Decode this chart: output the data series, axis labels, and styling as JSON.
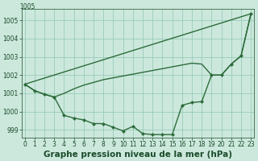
{
  "title": "Graphe pression niveau de la mer (hPa)",
  "background_color": "#cce8dc",
  "grid_color": "#99ccbb",
  "line_color": "#2d6b3c",
  "marker_color": "#2d6b3c",
  "xlim": [
    -0.3,
    23.3
  ],
  "ylim": [
    998.6,
    1005.6
  ],
  "yticks": [
    999,
    1000,
    1001,
    1002,
    1003,
    1004,
    1005
  ],
  "xticks": [
    0,
    1,
    2,
    3,
    4,
    5,
    6,
    7,
    8,
    9,
    10,
    11,
    12,
    13,
    14,
    15,
    16,
    17,
    18,
    19,
    20,
    21,
    22,
    23
  ],
  "series": [
    {
      "x": [
        0,
        23
      ],
      "y": [
        1001.5,
        1005.35
      ],
      "with_markers": false,
      "linewidth": 1.0
    },
    {
      "x": [
        0,
        1,
        2,
        3,
        4,
        5,
        6,
        7,
        8,
        9,
        10,
        11,
        12,
        13,
        14,
        15,
        16,
        17,
        18,
        19,
        20,
        21,
        22,
        23
      ],
      "y": [
        1001.5,
        1001.15,
        1000.95,
        1000.8,
        1001.0,
        1001.25,
        1001.45,
        1001.6,
        1001.75,
        1001.85,
        1001.95,
        1002.05,
        1002.15,
        1002.25,
        1002.35,
        1002.45,
        1002.55,
        1002.65,
        1002.6,
        1002.0,
        1002.0,
        1002.6,
        1003.05,
        1005.35
      ],
      "with_markers": false,
      "linewidth": 1.0
    },
    {
      "x": [
        0,
        1,
        2,
        3,
        4,
        5,
        6,
        7,
        8,
        9,
        10,
        11,
        12,
        13,
        14,
        15,
        16,
        17,
        18,
        19,
        20,
        21,
        22,
        23
      ],
      "y": [
        1001.5,
        1001.15,
        1000.95,
        1000.8,
        999.8,
        999.65,
        999.55,
        999.35,
        999.35,
        999.15,
        998.95,
        999.2,
        998.8,
        998.75,
        998.75,
        998.75,
        1000.35,
        1000.5,
        1000.55,
        1002.0,
        1002.0,
        1002.6,
        1003.05,
        1005.35
      ],
      "with_markers": true,
      "linewidth": 1.0
    }
  ],
  "title_fontsize": 7.5,
  "tick_fontsize": 5.5,
  "xlabel_fontsize": 7.5,
  "title_color": "#1a4a2a",
  "tick_color": "#1a4a2a",
  "top_label": "1005",
  "top_label_visible": true
}
